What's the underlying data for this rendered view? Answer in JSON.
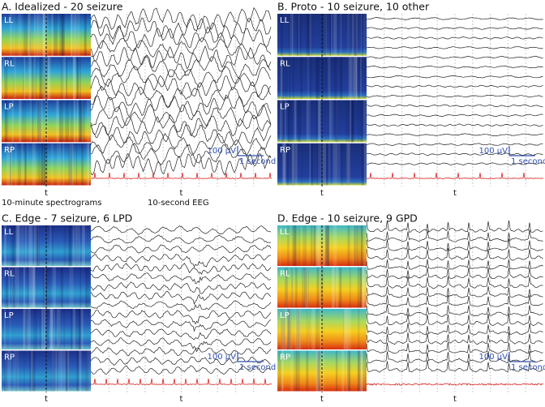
{
  "panels": [
    {
      "title": "A. Idealized - 20 seizure",
      "channels": [
        "LL",
        "RL",
        "LP",
        "RP"
      ],
      "scale_amplitude": "100 µV",
      "scale_time": "1 second",
      "x_label_spectrogram": "t",
      "x_label_eeg": "t",
      "caption_spectrogram": "10-minute spectrograms",
      "caption_eeg": "10-second EEG"
    },
    {
      "title": "B. Proto - 10 seizure, 10 other",
      "channels": [
        "LL",
        "RL",
        "LP",
        "RP"
      ],
      "scale_amplitude": "100 µV",
      "scale_time": "1 second",
      "x_label_spectrogram": "t",
      "x_label_eeg": "t"
    },
    {
      "title": "C. Edge - 7 seizure, 6 LPD",
      "channels": [
        "LL",
        "RL",
        "LP",
        "RP"
      ],
      "scale_amplitude": "100 µV",
      "scale_time": "1 second",
      "x_label_spectrogram": "t",
      "x_label_eeg": "t"
    },
    {
      "title": "D. Edge - 10 seizure, 9 GPD",
      "channels": [
        "LL",
        "RL",
        "LP",
        "RP"
      ],
      "scale_amplitude": "100 µV",
      "scale_time": "1 second",
      "x_label_spectrogram": "t",
      "x_label_eeg": "t"
    }
  ]
}
